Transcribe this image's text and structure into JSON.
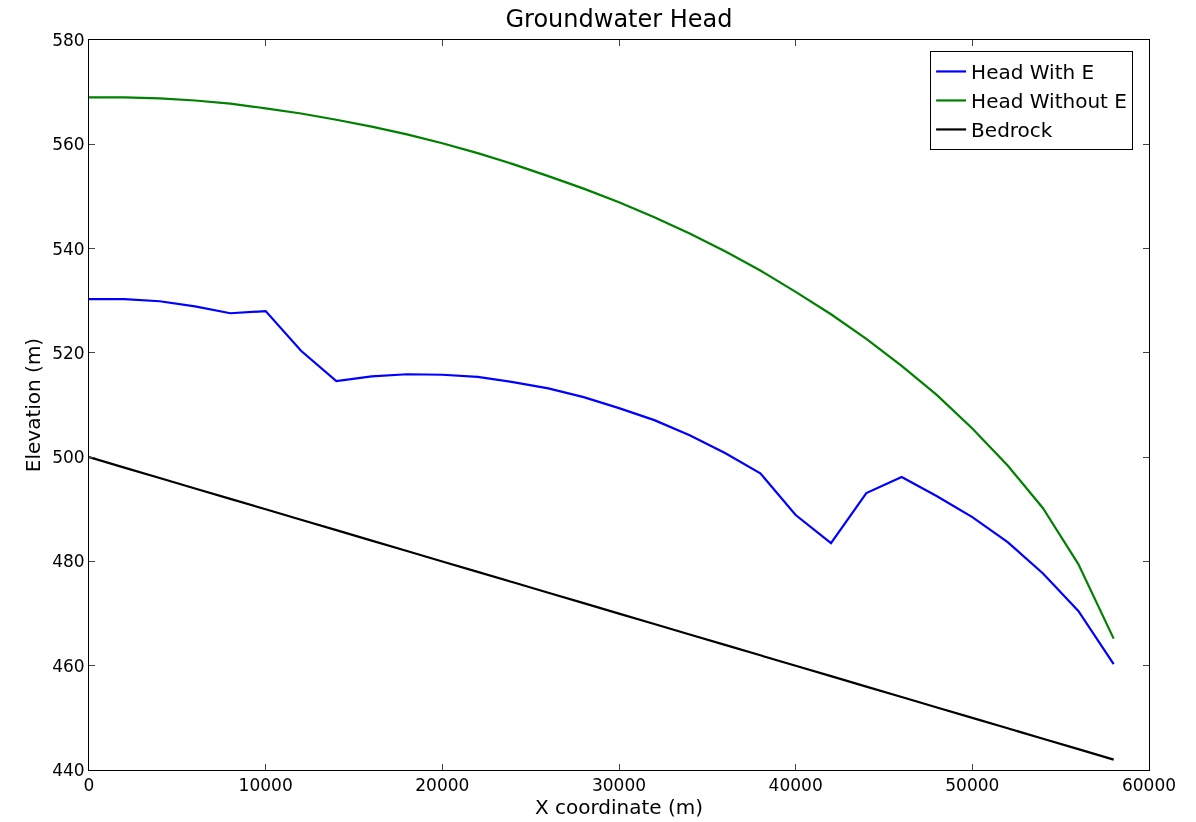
{
  "chart_data": {
    "type": "line",
    "title": "Groundwater Head",
    "xlabel": "X coordinate (m)",
    "ylabel": "Elevation (m)",
    "x": [
      0,
      2000,
      4000,
      6000,
      8000,
      10000,
      12000,
      14000,
      16000,
      18000,
      20000,
      22000,
      24000,
      26000,
      28000,
      30000,
      32000,
      34000,
      36000,
      38000,
      40000,
      42000,
      44000,
      46000,
      48000,
      50000,
      52000,
      54000,
      56000,
      58000
    ],
    "series": [
      {
        "name": "Head With E",
        "color": "#0000ff",
        "values": [
          530.3,
          530.3,
          529.9,
          528.9,
          527.6,
          528.0,
          520.4,
          514.6,
          515.5,
          515.9,
          515.8,
          515.4,
          514.4,
          513.2,
          511.5,
          509.4,
          507.1,
          504.2,
          500.8,
          496.9,
          488.9,
          483.5,
          493.1,
          496.2,
          492.5,
          488.5,
          483.7,
          477.7,
          470.5,
          460.3
        ]
      },
      {
        "name": "Head Without E",
        "color": "#008000",
        "values": [
          569.0,
          569.0,
          568.8,
          568.4,
          567.8,
          566.9,
          565.9,
          564.7,
          563.4,
          561.9,
          560.2,
          558.3,
          556.2,
          553.9,
          551.5,
          548.9,
          546.0,
          542.9,
          539.5,
          535.8,
          531.7,
          527.4,
          522.7,
          517.5,
          511.9,
          505.5,
          498.4,
          490.2,
          479.5,
          465.2
        ]
      },
      {
        "name": "Bedrock",
        "color": "#000000",
        "values": [
          500,
          498,
          496,
          494,
          492,
          490,
          488,
          486,
          484,
          482,
          480,
          478,
          476,
          474,
          472,
          470,
          468,
          466,
          464,
          462,
          460,
          458,
          456,
          454,
          452,
          450,
          448,
          446,
          444,
          442
        ]
      }
    ],
    "xlim": [
      0,
      60000
    ],
    "xticks": [
      0,
      10000,
      20000,
      30000,
      40000,
      50000,
      60000
    ],
    "ylim": [
      440,
      580
    ],
    "yticks": [
      440,
      460,
      480,
      500,
      520,
      540,
      560,
      580
    ],
    "legend": "top right",
    "marker": "none",
    "line_style": "solid"
  }
}
